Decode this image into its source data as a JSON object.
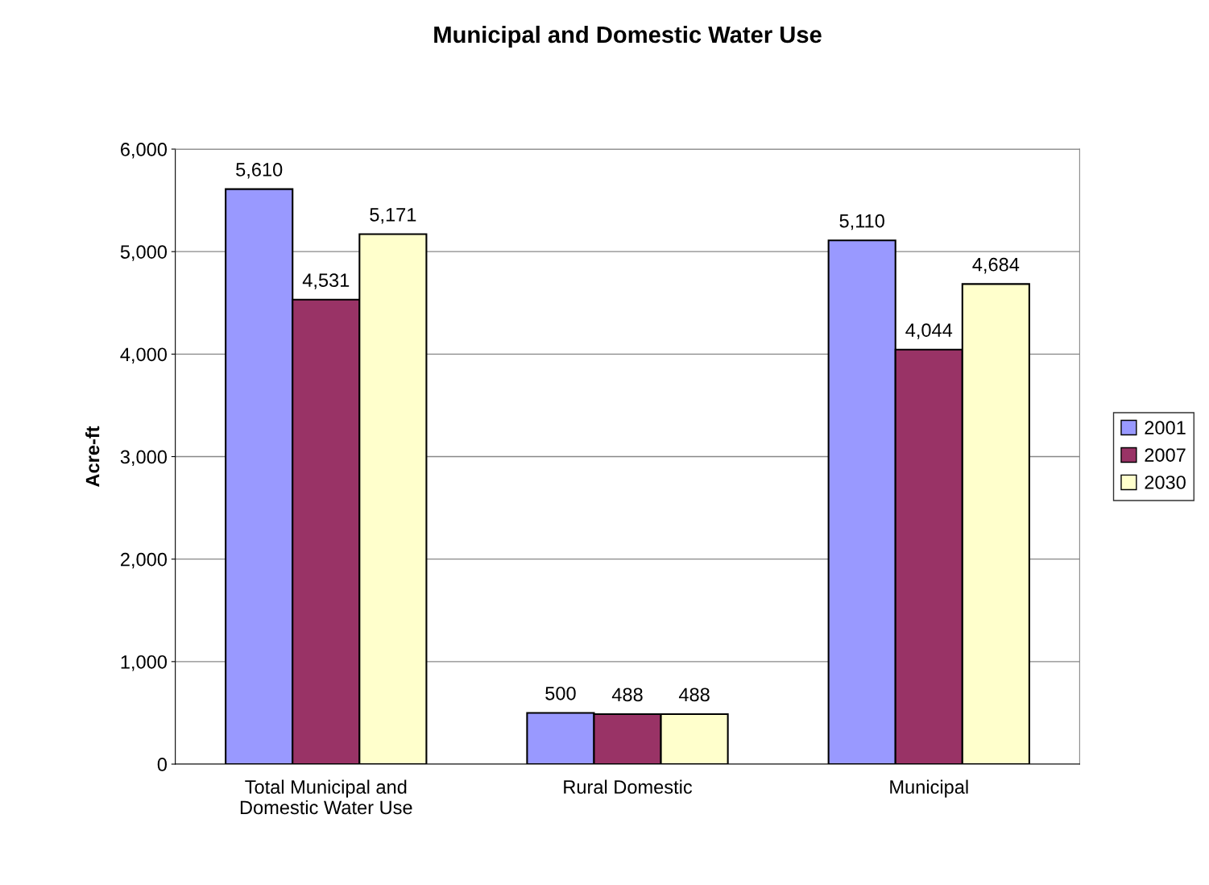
{
  "chart_data": {
    "type": "bar",
    "title": "Municipal and Domestic Water Use",
    "ylabel": "Acre-ft",
    "categories": [
      "Total Municipal and\nDomestic Water Use",
      "Rural Domestic",
      "Municipal"
    ],
    "series": [
      {
        "name": "2001",
        "color": "#9999ff",
        "values": [
          5610,
          500,
          5110
        ],
        "value_labels": [
          "5,610",
          "500",
          "5,110"
        ]
      },
      {
        "name": "2007",
        "color": "#993366",
        "values": [
          4531,
          488,
          4044
        ],
        "value_labels": [
          "4,531",
          "488",
          "4,044"
        ]
      },
      {
        "name": "2030",
        "color": "#ffffcc",
        "values": [
          5171,
          488,
          4684
        ],
        "value_labels": [
          "5,171",
          "488",
          "4,684"
        ]
      }
    ],
    "ylim": [
      0,
      6000
    ],
    "yticks": [
      {
        "value": 0,
        "label": "0"
      },
      {
        "value": 1000,
        "label": "1,000"
      },
      {
        "value": 2000,
        "label": "2,000"
      },
      {
        "value": 3000,
        "label": "3,000"
      },
      {
        "value": 4000,
        "label": "4,000"
      },
      {
        "value": 5000,
        "label": "5,000"
      },
      {
        "value": 6000,
        "label": "6,000"
      }
    ],
    "grid": "y",
    "legend": "right"
  }
}
